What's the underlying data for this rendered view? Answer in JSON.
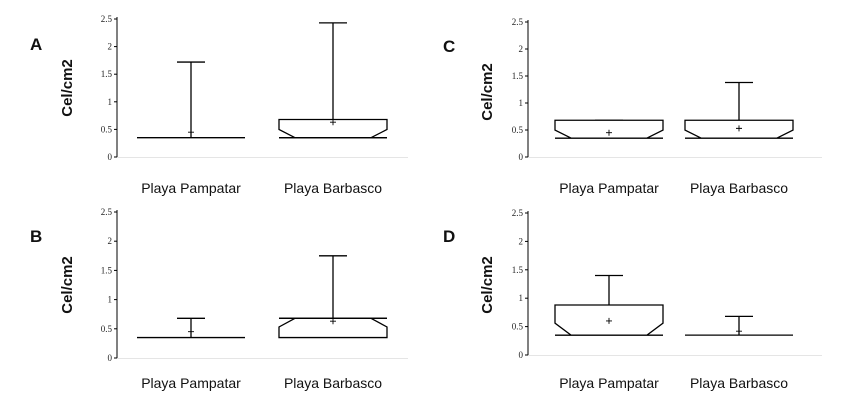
{
  "chart_data": [
    {
      "panel": "A",
      "type": "box",
      "ylabel": "Cel/cm2",
      "ylim": [
        0,
        2.5
      ],
      "yticks": [
        "0",
        "0.5",
        "1",
        "1.5",
        "2",
        "2.5"
      ],
      "categories": [
        "Playa Pampatar",
        "Playa Barbasco"
      ],
      "boxes": [
        {
          "q1": 0.35,
          "median": 0.35,
          "q3": 0.35,
          "max": 1.72,
          "mean": 0.45,
          "notched": false
        },
        {
          "q1": 0.35,
          "median": 0.35,
          "q3": 0.68,
          "max": 2.43,
          "mean": 0.63,
          "notched": true
        }
      ]
    },
    {
      "panel": "B",
      "type": "box",
      "ylabel": "Cel/cm2",
      "ylim": [
        0,
        2.5
      ],
      "yticks": [
        "0",
        "0.5",
        "1",
        "1.5",
        "2",
        "2.5"
      ],
      "categories": [
        "Playa Pampatar",
        "Playa Barbasco"
      ],
      "boxes": [
        {
          "q1": 0.35,
          "median": 0.35,
          "q3": 0.35,
          "max": 0.68,
          "mean": 0.45,
          "notched": false
        },
        {
          "q1": 0.35,
          "median": 0.68,
          "q3": 0.68,
          "max": 1.75,
          "mean": 0.63,
          "notched": true
        }
      ]
    },
    {
      "panel": "C",
      "type": "box",
      "ylabel": "Cel/cm2",
      "ylim": [
        0,
        2.5
      ],
      "yticks": [
        "0",
        "0.5",
        "1",
        "1.5",
        "2",
        "2.5"
      ],
      "categories": [
        "Playa Pampatar",
        "Playa Barbasco"
      ],
      "boxes": [
        {
          "q1": 0.35,
          "median": 0.35,
          "q3": 0.68,
          "max": 0.68,
          "mean": 0.45,
          "notched": true
        },
        {
          "q1": 0.35,
          "median": 0.35,
          "q3": 0.68,
          "max": 1.38,
          "mean": 0.53,
          "notched": true
        }
      ]
    },
    {
      "panel": "D",
      "type": "box",
      "ylabel": "Cel/cm2",
      "ylim": [
        0,
        2.5
      ],
      "yticks": [
        "0",
        "0.5",
        "1",
        "1.5",
        "2",
        "2.5"
      ],
      "categories": [
        "Playa Pampatar",
        "Playa Barbasco"
      ],
      "boxes": [
        {
          "q1": 0.35,
          "median": 0.35,
          "q3": 0.88,
          "max": 1.4,
          "mean": 0.6,
          "notched": true
        },
        {
          "q1": 0.35,
          "median": 0.35,
          "q3": 0.35,
          "max": 0.68,
          "mean": 0.42,
          "notched": false
        }
      ]
    }
  ]
}
